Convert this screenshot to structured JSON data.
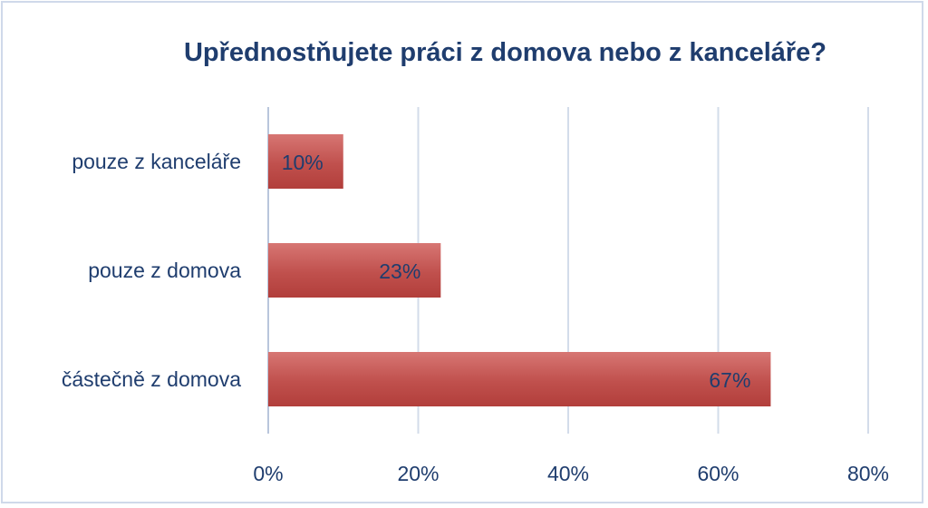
{
  "chart_data": {
    "type": "bar",
    "orientation": "horizontal",
    "title": "Upřednostňujete práci z domova nebo z kanceláře?",
    "categories": [
      "pouze z kanceláře",
      "pouze z domova",
      "částečně z domova"
    ],
    "values": [
      10,
      23,
      67
    ],
    "data_labels": [
      "10%",
      "23%",
      "67%"
    ],
    "xlim": [
      0,
      80
    ],
    "x_ticks": [
      0,
      20,
      40,
      60,
      80
    ],
    "x_tick_labels": [
      "0%",
      "20%",
      "40%",
      "60%",
      "80%"
    ],
    "bar_color": "#c0504d",
    "grid": true,
    "legend": "none"
  }
}
